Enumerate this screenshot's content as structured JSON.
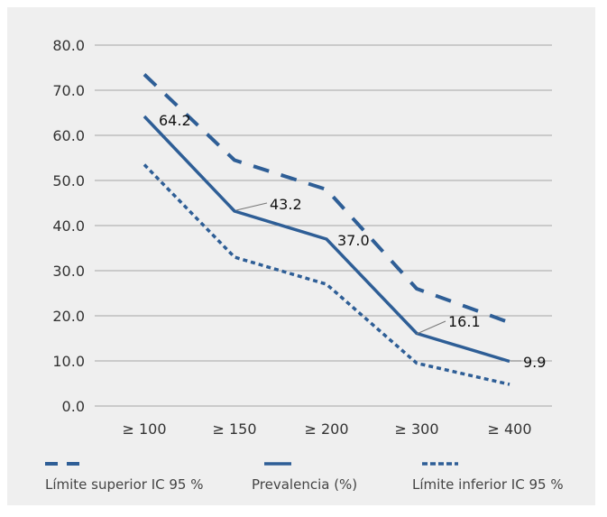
{
  "chart_data": {
    "type": "line",
    "title": "",
    "xlabel": "",
    "ylabel": "",
    "categories": [
      "≥ 100",
      "≥ 150",
      "≥ 200",
      "≥ 300",
      "≥ 400"
    ],
    "ylim": [
      0,
      80
    ],
    "yticks": [
      "0.0",
      "10.0",
      "20.0",
      "30.0",
      "40.0",
      "50.0",
      "60.0",
      "70.0",
      "80.0"
    ],
    "grid": true,
    "legend_position": "bottom",
    "series": [
      {
        "name": "Límite superior IC 95 %",
        "style": "dashed",
        "values": [
          73.5,
          54.5,
          48.0,
          26.0,
          18.5
        ]
      },
      {
        "name": "Prevalencia (%)",
        "style": "solid",
        "values": [
          64.2,
          43.2,
          37.0,
          16.1,
          9.9
        ],
        "data_labels": [
          "64.2",
          "43.2",
          "37.0",
          "16.1",
          "9.9"
        ]
      },
      {
        "name": "Límite inferior IC 95 %",
        "style": "dotted",
        "values": [
          53.5,
          33.0,
          27.0,
          9.5,
          4.8
        ]
      }
    ],
    "colors": {
      "line": "#2e5e96",
      "grid": "#a6a6a6",
      "background": "#efefef"
    }
  }
}
